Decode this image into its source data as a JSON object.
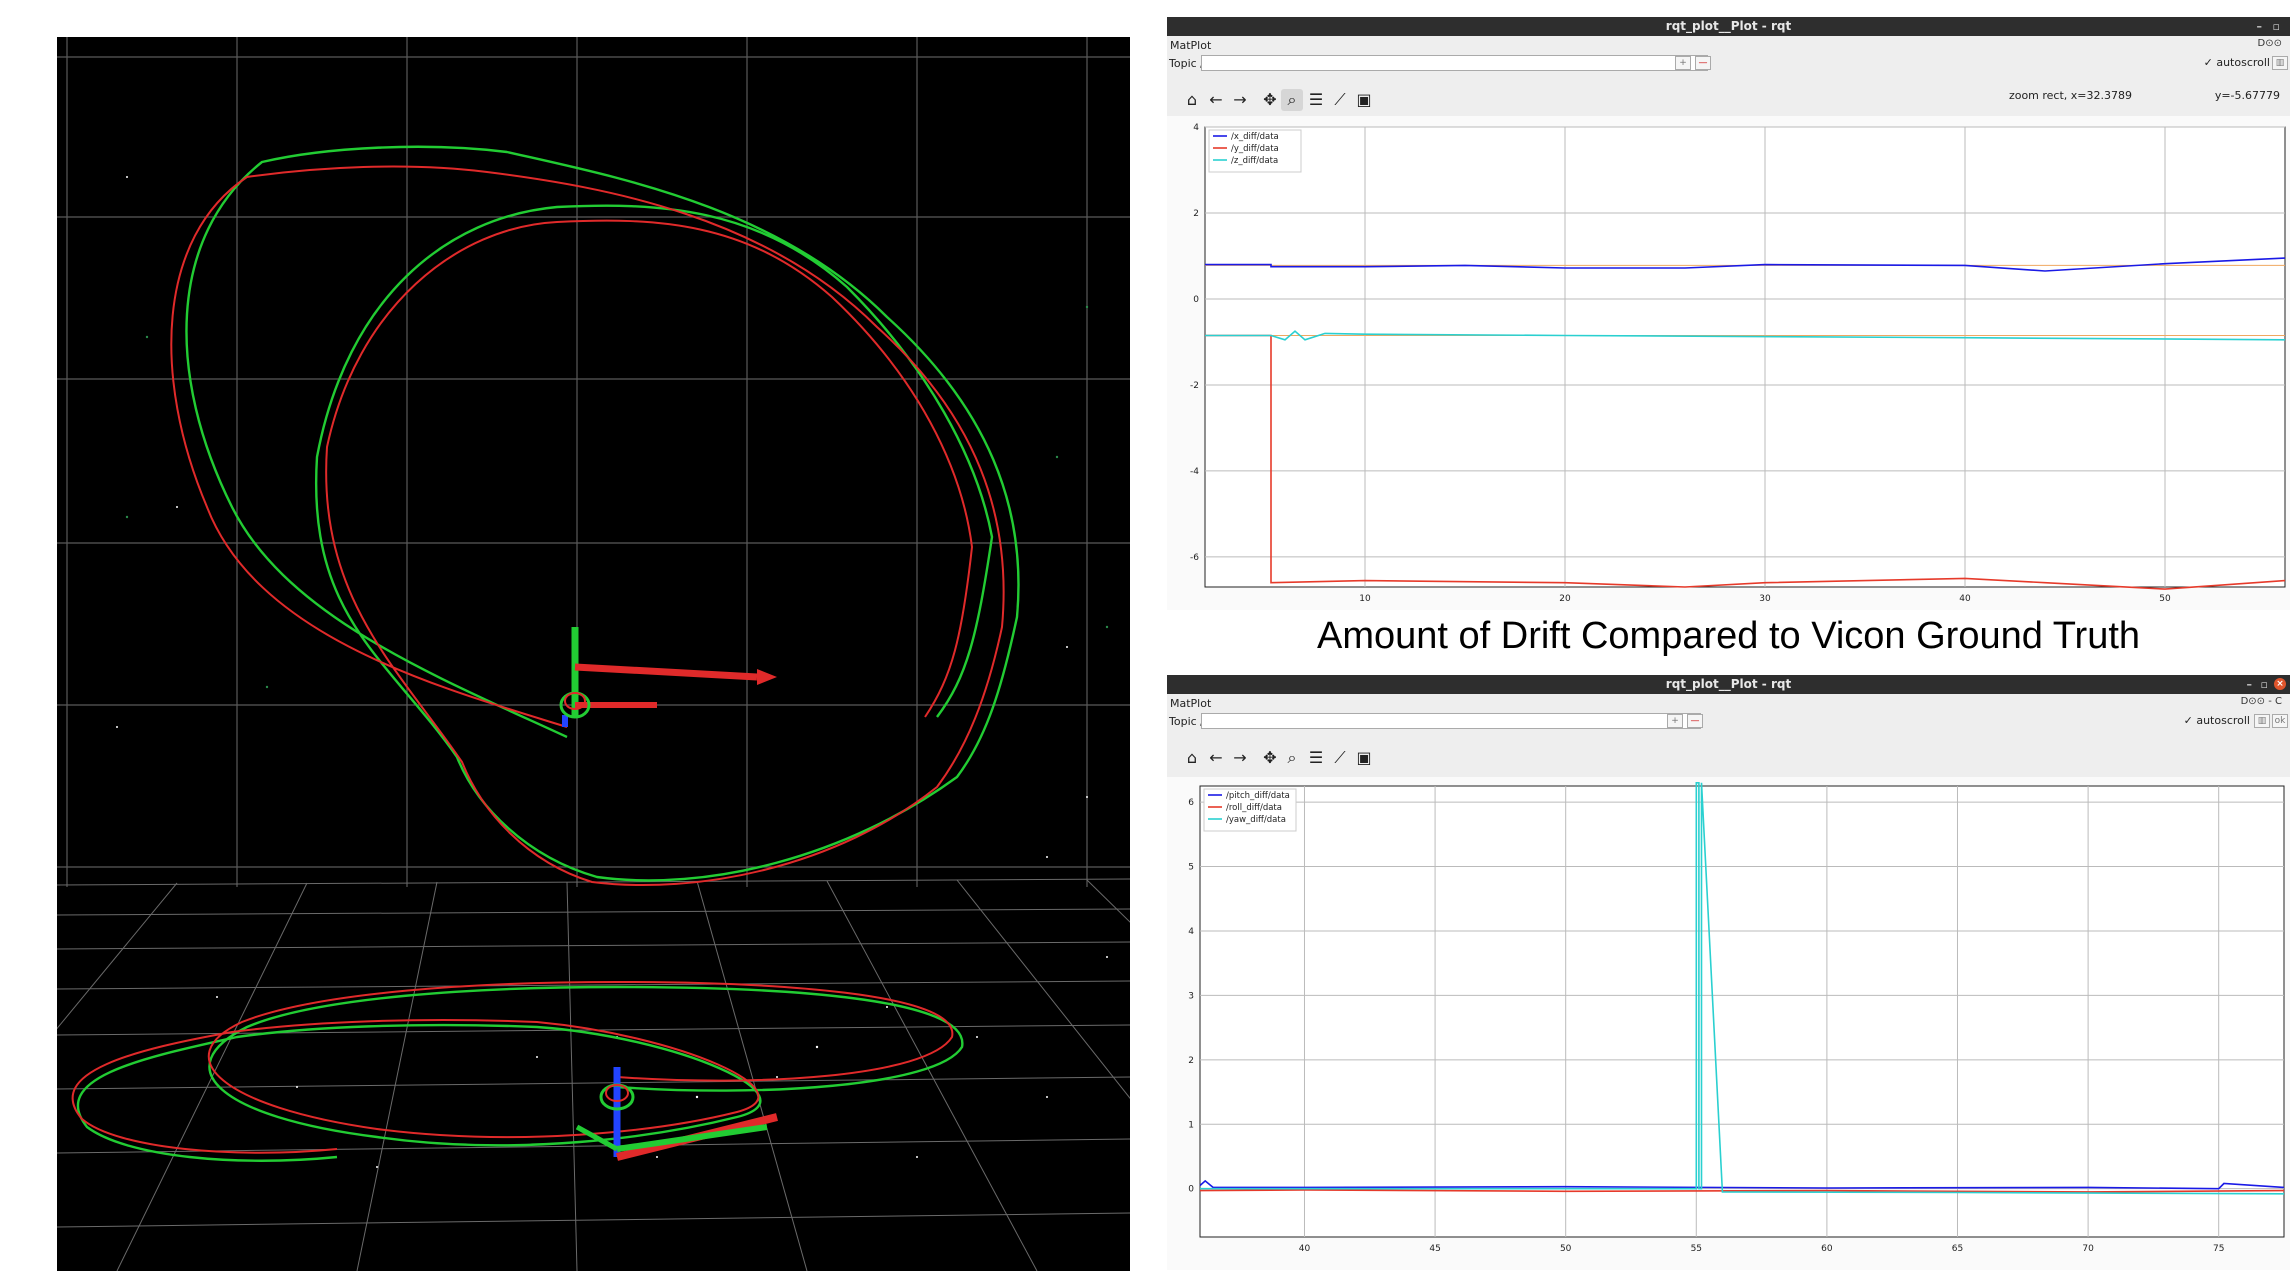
{
  "caption": "Amount of Drift Compared to Vicon Ground Truth",
  "window1": {
    "title": "rqt_plot__Plot - rqt",
    "plugin": "MatPlot",
    "plugin_controls": "D⊙⊙",
    "topic_label": "Topic",
    "topic_value": "/",
    "autoscroll_label": "autoscroll",
    "status": "zoom rect, x=32.3789",
    "status_y": "y=-5.67779",
    "chart_data": {
      "type": "line",
      "x_ticks": [
        "10",
        "20",
        "30",
        "40",
        "50"
      ],
      "y_ticks": [
        "4",
        "2",
        "0",
        "-2",
        "-4",
        "-6"
      ],
      "xlim": [
        2,
        56
      ],
      "ylim": [
        -6.7,
        4
      ],
      "grid": true,
      "legend": "top-left",
      "series": [
        {
          "name": "/x_diff/data",
          "color": "#1a1ae6",
          "x": [
            2,
            5.3,
            5.3,
            10,
            15,
            20,
            26,
            30,
            40,
            44,
            50,
            56
          ],
          "y": [
            0.8,
            0.8,
            0.75,
            0.75,
            0.78,
            0.72,
            0.72,
            0.8,
            0.78,
            0.65,
            0.82,
            0.95
          ]
        },
        {
          "name": "/y_diff/data",
          "color": "#e63a2a",
          "x": [
            2,
            5.3,
            5.3,
            10,
            20,
            26,
            30,
            40,
            44,
            50,
            56
          ],
          "y": [
            -0.85,
            -0.85,
            -6.6,
            -6.55,
            -6.6,
            -6.7,
            -6.6,
            -6.5,
            -6.6,
            -6.75,
            -6.55
          ]
        },
        {
          "name": "/z_diff/data",
          "color": "#2ad0d0",
          "x": [
            2,
            5.3,
            6,
            6.5,
            7,
            8,
            10,
            20,
            40,
            56
          ],
          "y": [
            -0.85,
            -0.85,
            -0.95,
            -0.75,
            -0.95,
            -0.8,
            -0.82,
            -0.85,
            -0.9,
            -0.95
          ]
        }
      ]
    }
  },
  "window2": {
    "title": "rqt_plot__Plot - rqt",
    "plugin": "MatPlot",
    "plugin_controls": "D⊙⊙ - C",
    "topic_label": "Topic",
    "topic_value": "/",
    "autoscroll_label": "autoscroll",
    "chart_data": {
      "type": "line",
      "x_ticks": [
        "40",
        "45",
        "50",
        "55",
        "60",
        "65",
        "70",
        "75"
      ],
      "y_ticks": [
        "6",
        "5",
        "4",
        "3",
        "2",
        "1",
        "0"
      ],
      "xlim": [
        36,
        77.5
      ],
      "ylim": [
        -0.75,
        6.25
      ],
      "grid": true,
      "legend": "top-left",
      "series": [
        {
          "name": "/pitch_diff/data",
          "color": "#1a1ae6",
          "x": [
            36,
            36.2,
            36.5,
            40,
            50,
            60,
            70,
            75,
            75.2,
            77.5
          ],
          "y": [
            0.05,
            0.12,
            0.02,
            0.02,
            0.03,
            0.01,
            0.02,
            0.0,
            0.08,
            0.02
          ]
        },
        {
          "name": "/roll_diff/data",
          "color": "#e63a2a",
          "x": [
            36,
            40,
            50,
            60,
            70,
            77.5
          ],
          "y": [
            -0.03,
            -0.02,
            -0.04,
            -0.03,
            -0.05,
            -0.03
          ]
        },
        {
          "name": "/yaw_diff/data",
          "color": "#2ad0d0",
          "x": [
            36,
            55,
            55,
            55.1,
            55.1,
            55.2,
            55.2,
            56,
            65,
            77.5
          ],
          "y": [
            0.0,
            0.0,
            6.3,
            6.3,
            0.0,
            0.0,
            6.3,
            -0.05,
            -0.06,
            -0.08
          ]
        }
      ]
    }
  }
}
